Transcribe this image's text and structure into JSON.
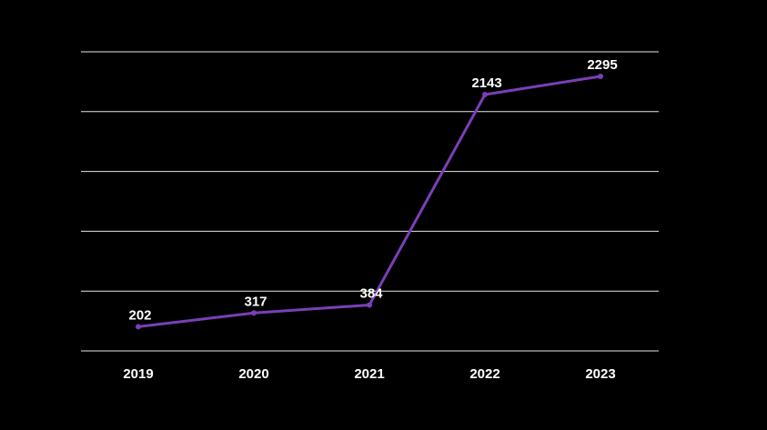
{
  "chart_data": {
    "type": "line",
    "categories": [
      "2019",
      "2020",
      "2021",
      "2022",
      "2023"
    ],
    "series": [
      {
        "values": [
          202,
          317,
          384,
          2143,
          2295
        ],
        "color": "#7a3fb8"
      }
    ],
    "data_labels": [
      "202",
      "317",
      "384",
      "2143",
      "2295"
    ],
    "title": "",
    "xlabel": "",
    "ylabel": "",
    "ylim": [
      0,
      2500
    ],
    "grid": true,
    "legend": "none",
    "colors": {
      "background": "#000000",
      "grid": "#e6e6e6",
      "text": "#ffffff",
      "line": "#7a3fb8"
    }
  }
}
